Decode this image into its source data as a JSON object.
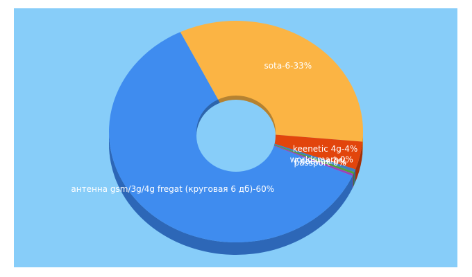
{
  "chart_data": {
    "type": "pie",
    "variant": "3d-donut",
    "colors": {
      "background": "#87cdf9"
    },
    "slices": [
      {
        "label": "sota-6-33%",
        "value": 33,
        "color": "#fbb444",
        "side_color": "#c98a25"
      },
      {
        "label": "keenetic 4g-4%",
        "value": 4,
        "color": "#e2450c",
        "side_color": "#a42f06"
      },
      {
        "label": "worldsmart-0%",
        "value": 0.4,
        "color": "#3f7ec0",
        "side_color": "#2e5f94"
      },
      {
        "label": "Главная-0%",
        "value": 0.3,
        "color": "#52a13a",
        "side_color": "#3b7629"
      },
      {
        "label": "passport-0%",
        "value": 0.3,
        "color": "#9c43b8",
        "side_color": "#6f2f84"
      },
      {
        "label": "антенна gsm/3g/4g fregat (круговая 6 дб)-60%",
        "value": 60,
        "color": "#3f8cef",
        "side_color": "#2d67b7"
      }
    ]
  }
}
